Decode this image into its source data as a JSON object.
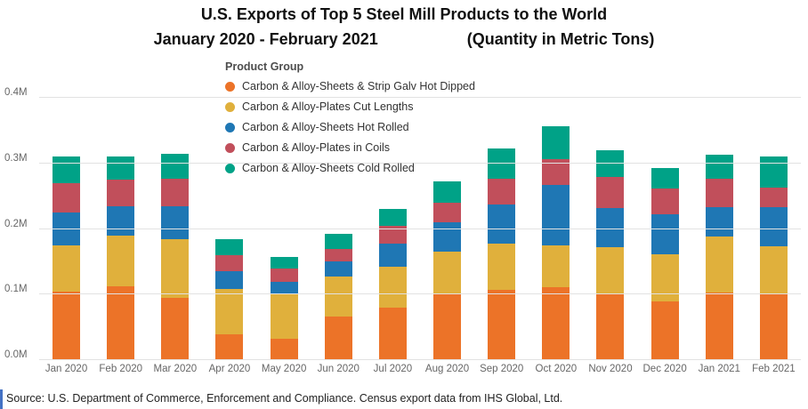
{
  "title": {
    "line1": "U.S. Exports of Top 5 Steel Mill Products to the World",
    "line2_left": "January 2020 - February 2021",
    "line2_right": "(Quantity in Metric Tons)"
  },
  "legend": {
    "title": "Product Group"
  },
  "chart_data": {
    "type": "bar",
    "stacked": true,
    "title": "U.S. Exports of Top 5 Steel Mill Products to the World, January 2020 - February 2021 (Quantity in Metric Tons)",
    "unit": "million metric tons",
    "ylim": [
      0,
      0.4
    ],
    "yticks": [
      "0.0M",
      "0.1M",
      "0.2M",
      "0.3M",
      "0.4M"
    ],
    "grid": true,
    "legend_position": "top-left-overlay",
    "categories": [
      "Jan 2020",
      "Feb 2020",
      "Mar 2020",
      "Apr 2020",
      "May 2020",
      "Jun 2020",
      "Jul 2020",
      "Aug 2020",
      "Sep 2020",
      "Oct 2020",
      "Nov 2020",
      "Dec 2020",
      "Jan 2021",
      "Feb 2021"
    ],
    "series": [
      {
        "name": "Carbon & Alloy-Sheets & Strip Galv Hot Dipped",
        "color": "#ec7328",
        "values": [
          0.105,
          0.112,
          0.095,
          0.04,
          0.033,
          0.067,
          0.08,
          0.1,
          0.107,
          0.111,
          0.1,
          0.09,
          0.103,
          0.1
        ]
      },
      {
        "name": "Carbon & Alloy-Plates Cut Lengths",
        "color": "#e0b03c",
        "values": [
          0.07,
          0.078,
          0.09,
          0.068,
          0.067,
          0.061,
          0.062,
          0.066,
          0.07,
          0.064,
          0.072,
          0.072,
          0.085,
          0.073
        ]
      },
      {
        "name": "Carbon & Alloy-Sheets Hot Rolled",
        "color": "#1f77b4",
        "values": [
          0.05,
          0.045,
          0.05,
          0.027,
          0.02,
          0.022,
          0.036,
          0.044,
          0.06,
          0.092,
          0.06,
          0.06,
          0.045,
          0.06
        ]
      },
      {
        "name": "Carbon & Alloy-Plates in Coils",
        "color": "#c14f5b",
        "values": [
          0.045,
          0.04,
          0.042,
          0.025,
          0.02,
          0.02,
          0.027,
          0.03,
          0.04,
          0.04,
          0.048,
          0.04,
          0.044,
          0.03
        ]
      },
      {
        "name": "Carbon & Alloy-Sheets Cold Rolled",
        "color": "#00a287",
        "values": [
          0.04,
          0.035,
          0.038,
          0.025,
          0.017,
          0.022,
          0.025,
          0.032,
          0.046,
          0.05,
          0.04,
          0.031,
          0.036,
          0.047
        ]
      }
    ]
  },
  "source": "Source: U.S. Department of Commerce, Enforcement and Compliance. Census export data from IHS Global, Ltd."
}
